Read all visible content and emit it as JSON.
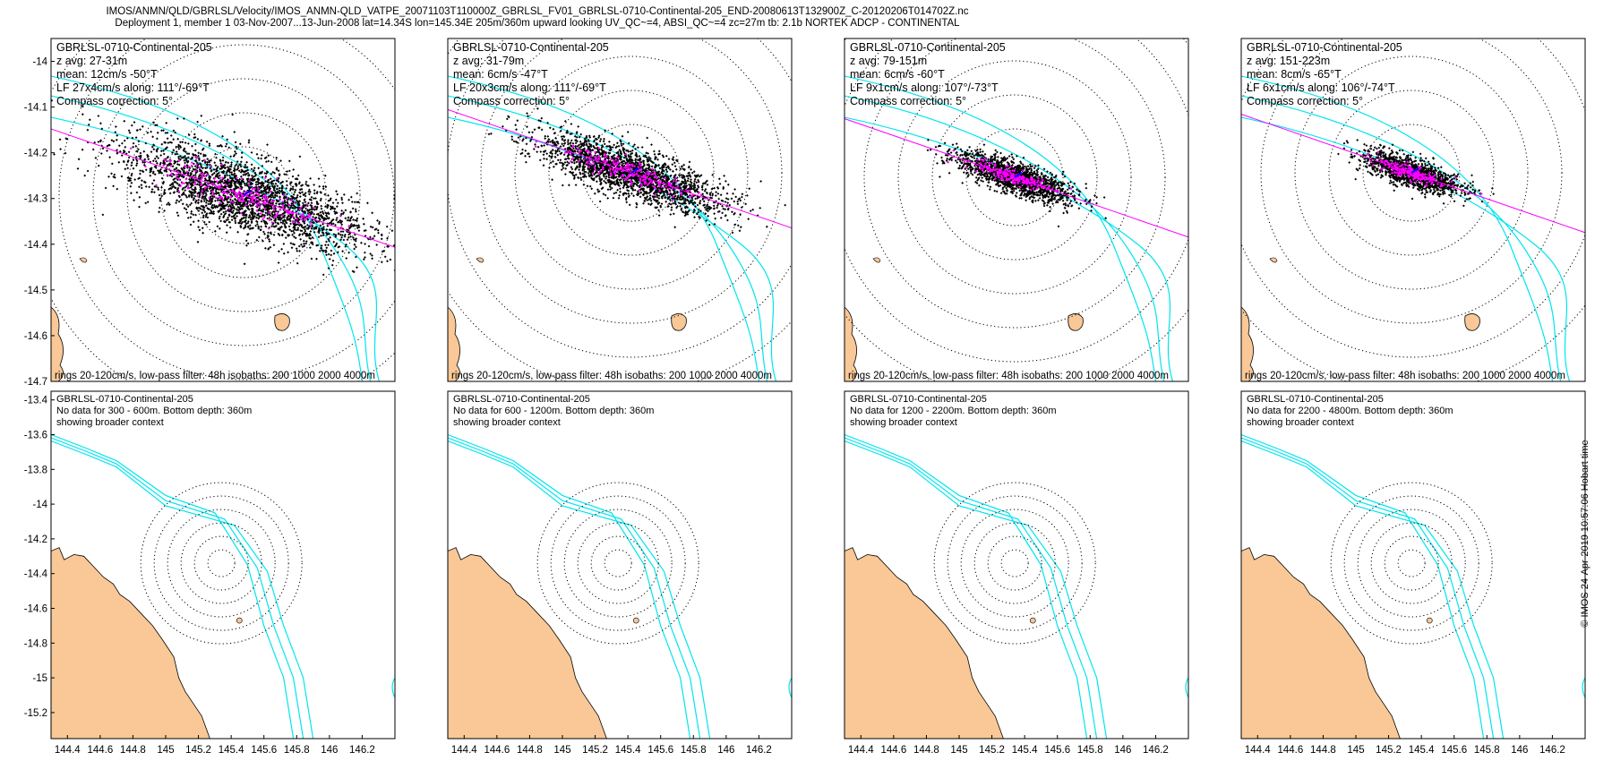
{
  "figure": {
    "title_line1": "IMOS/ANMN/QLD/GBRLSL/Velocity/IMOS_ANMN-QLD_VATPE_20071103T110000Z_GBRLSL_FV01_GBRLSL-0710-Continental-205_END-20080613T132900Z_C-20120206T014702Z.nc",
    "title_line2": "Deployment 1, member 1 03-Nov-2007...13-Jun-2008 lat=14.34S lon=145.34E 205m/360m upward looking UV_QC~=4, ABSI_QC~=4 zc=27m tb: 2.1b NORTEK ADCP - CONTINENTAL",
    "footer": "rings 20-120cm/s, low-pass filter: 48h isobaths: 200 1000 2000 4000m",
    "timestamp": "© IMOS 24-Apr-2019 10:57:06 Hobart time"
  },
  "colors": {
    "land": "#f9c896",
    "isobath": "#00e5ee",
    "lowpass": "#ff00ff",
    "points": "#000000",
    "axis_line": "#ff00ff"
  },
  "chart_data": [
    {
      "type": "scatter",
      "id": "top-1",
      "text": [
        "GBRLSL-0710-Continental-205",
        "z avg: 27-31m",
        "mean: 12cm/s -50°T",
        "LF 27x4cm/s along: 111°/-69°T",
        "Compass correction: 5°"
      ],
      "center": [
        145.34,
        -14.34
      ],
      "rings_cm_s": [
        20,
        40,
        60,
        80,
        100,
        120
      ],
      "mean_speed_cm_s": 12,
      "mean_dir_deg_true": -50,
      "major_cm_s": 27,
      "minor_cm_s": 4,
      "along_deg_true": 111,
      "ylim": [
        -14.7,
        -13.95
      ],
      "yticks": [
        -14,
        -14.1,
        -14.2,
        -14.3,
        -14.4,
        -14.5,
        -14.6,
        -14.7
      ]
    },
    {
      "type": "scatter",
      "id": "top-2",
      "text": [
        "GBRLSL-0710-Continental-205",
        "z avg: 31-79m",
        "mean: 6cm/s -47°T",
        "LF 20x3cm/s along: 111°/-69°T",
        "Compass correction: 5°"
      ],
      "center": [
        145.34,
        -14.34
      ],
      "rings_cm_s": [
        20,
        40,
        60,
        80,
        100,
        120
      ],
      "mean_speed_cm_s": 6,
      "mean_dir_deg_true": -47,
      "major_cm_s": 20,
      "minor_cm_s": 3,
      "along_deg_true": 111
    },
    {
      "type": "scatter",
      "id": "top-3",
      "text": [
        "GBRLSL-0710-Continental-205",
        "z avg: 79-151m",
        "mean: 6cm/s -60°T",
        "LF 9x1cm/s along: 107°/-73°T",
        "Compass correction: 5°"
      ],
      "center": [
        145.34,
        -14.34
      ],
      "rings_cm_s": [
        20,
        40,
        60,
        80,
        100,
        120
      ],
      "mean_speed_cm_s": 6,
      "mean_dir_deg_true": -60,
      "major_cm_s": 9,
      "minor_cm_s": 1,
      "along_deg_true": 107
    },
    {
      "type": "scatter",
      "id": "top-4",
      "text": [
        "GBRLSL-0710-Continental-205",
        "z avg: 151-223m",
        "mean: 8cm/s -65°T",
        "LF 6x1cm/s along: 106°/-74°T",
        "Compass correction: 5°"
      ],
      "center": [
        145.34,
        -14.34
      ],
      "rings_cm_s": [
        20,
        40,
        60,
        80,
        100,
        120
      ],
      "mean_speed_cm_s": 8,
      "mean_dir_deg_true": -65,
      "major_cm_s": 6,
      "minor_cm_s": 1,
      "along_deg_true": 106
    },
    {
      "type": "scatter",
      "id": "bottom-1",
      "text": [
        "GBRLSL-0710-Continental-205",
        "No data for 300 - 600m. Bottom depth: 360m",
        "showing broader context"
      ],
      "xlim": [
        144.3,
        146.4
      ],
      "ylim": [
        -15.35,
        -13.35
      ],
      "xticks": [
        144.4,
        144.6,
        144.8,
        145,
        145.2,
        145.4,
        145.6,
        145.8,
        146,
        146.2
      ],
      "yticks": [
        -13.4,
        -13.6,
        -13.8,
        -14,
        -14.2,
        -14.4,
        -14.6,
        -14.8,
        -15,
        -15.2
      ]
    },
    {
      "type": "scatter",
      "id": "bottom-2",
      "text": [
        "GBRLSL-0710-Continental-205",
        "No data for 600 - 1200m. Bottom depth: 360m",
        "showing broader context"
      ],
      "xlim": [
        144.3,
        146.4
      ],
      "xticks": [
        144.4,
        144.6,
        144.8,
        145,
        145.2,
        145.4,
        145.6,
        145.8,
        146,
        146.2
      ]
    },
    {
      "type": "scatter",
      "id": "bottom-3",
      "text": [
        "GBRLSL-0710-Continental-205",
        "No data for 1200 - 2200m. Bottom depth: 360m",
        "showing broader context"
      ],
      "xlim": [
        144.3,
        146.4
      ],
      "xticks": [
        144.4,
        144.6,
        144.8,
        145,
        145.2,
        145.4,
        145.6,
        145.8,
        146,
        146.2
      ]
    },
    {
      "type": "scatter",
      "id": "bottom-4",
      "text": [
        "GBRLSL-0710-Continental-205",
        "No data for 2200 - 4800m. Bottom depth: 360m",
        "showing broader context"
      ],
      "xlim": [
        144.3,
        146.4
      ],
      "xticks": [
        144.4,
        144.6,
        144.8,
        145,
        145.2,
        145.4,
        145.6,
        145.8,
        146,
        146.2
      ]
    }
  ]
}
